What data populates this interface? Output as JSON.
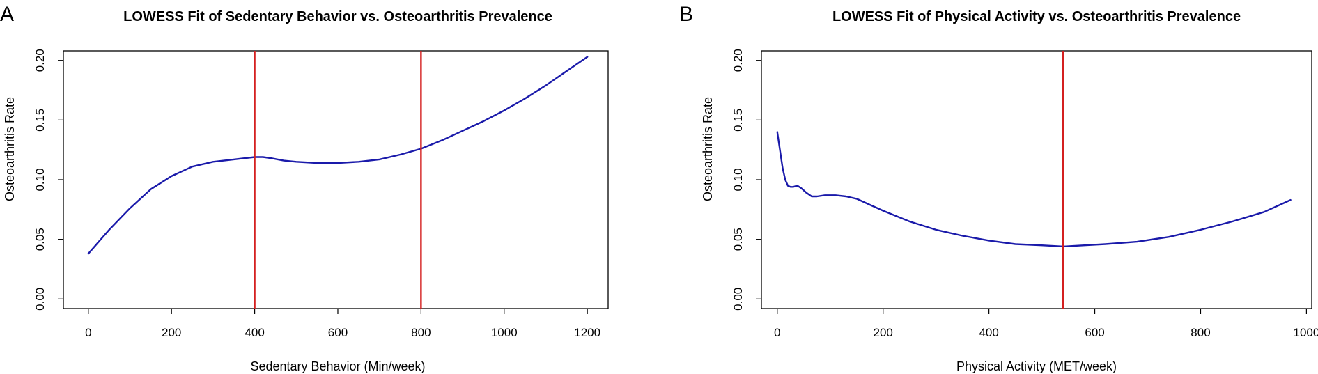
{
  "figure": {
    "panels": [
      "A",
      "B"
    ]
  },
  "chart_data": [
    {
      "type": "line",
      "panel": "A",
      "title": "LOWESS Fit of Sedentary Behavior vs. Osteoarthritis Prevalence",
      "xlabel": "Sedentary Behavior (Min/week)",
      "ylabel": "Osteoarthritis Rate",
      "xlim": [
        -60,
        1250
      ],
      "ylim": [
        -0.008,
        0.208
      ],
      "xticks": [
        0,
        200,
        400,
        600,
        800,
        1000,
        1200
      ],
      "xtick_labels": [
        "0",
        "200",
        "400",
        "600",
        "800",
        "1000",
        "1200"
      ],
      "yticks": [
        0.0,
        0.05,
        0.1,
        0.15,
        0.2
      ],
      "ytick_labels": [
        "0.00",
        "0.05",
        "0.10",
        "0.15",
        "0.20"
      ],
      "grid": false,
      "series": [
        {
          "name": "LOWESS fit",
          "color": "#1a1aaa",
          "x": [
            0,
            50,
            100,
            150,
            200,
            250,
            300,
            350,
            400,
            420,
            440,
            470,
            500,
            550,
            600,
            650,
            700,
            750,
            800,
            850,
            900,
            950,
            1000,
            1050,
            1100,
            1150,
            1200
          ],
          "y": [
            0.038,
            0.058,
            0.076,
            0.092,
            0.103,
            0.111,
            0.115,
            0.117,
            0.119,
            0.119,
            0.118,
            0.116,
            0.115,
            0.114,
            0.114,
            0.115,
            0.117,
            0.121,
            0.126,
            0.133,
            0.141,
            0.149,
            0.158,
            0.168,
            0.179,
            0.191,
            0.203
          ]
        }
      ],
      "vlines": [
        {
          "x": 400,
          "color": "#d42020"
        },
        {
          "x": 800,
          "color": "#d42020"
        }
      ]
    },
    {
      "type": "line",
      "panel": "B",
      "title": "LOWESS Fit of Physical Activity vs. Osteoarthritis Prevalence",
      "xlabel": "Physical Activity (MET/week)",
      "ylabel": "Osteoarthritis Rate",
      "xlim": [
        -30,
        1010
      ],
      "ylim": [
        -0.008,
        0.208
      ],
      "xticks": [
        0,
        200,
        400,
        600,
        800,
        1000
      ],
      "xtick_labels": [
        "0",
        "200",
        "400",
        "600",
        "800",
        "1000"
      ],
      "yticks": [
        0.0,
        0.05,
        0.1,
        0.15,
        0.2
      ],
      "ytick_labels": [
        "0.00",
        "0.05",
        "0.10",
        "0.15",
        "0.20"
      ],
      "grid": false,
      "series": [
        {
          "name": "LOWESS fit",
          "color": "#1a1aaa",
          "x": [
            0,
            5,
            10,
            15,
            20,
            25,
            30,
            38,
            45,
            55,
            65,
            75,
            90,
            110,
            130,
            150,
            175,
            200,
            250,
            300,
            350,
            400,
            450,
            500,
            540,
            580,
            620,
            680,
            740,
            800,
            860,
            920,
            970
          ],
          "y": [
            0.14,
            0.125,
            0.11,
            0.1,
            0.095,
            0.094,
            0.094,
            0.095,
            0.093,
            0.089,
            0.086,
            0.086,
            0.087,
            0.087,
            0.086,
            0.084,
            0.079,
            0.074,
            0.065,
            0.058,
            0.053,
            0.049,
            0.046,
            0.045,
            0.044,
            0.045,
            0.046,
            0.048,
            0.052,
            0.058,
            0.065,
            0.073,
            0.083
          ]
        }
      ],
      "vlines": [
        {
          "x": 540,
          "color": "#d42020"
        }
      ]
    }
  ]
}
